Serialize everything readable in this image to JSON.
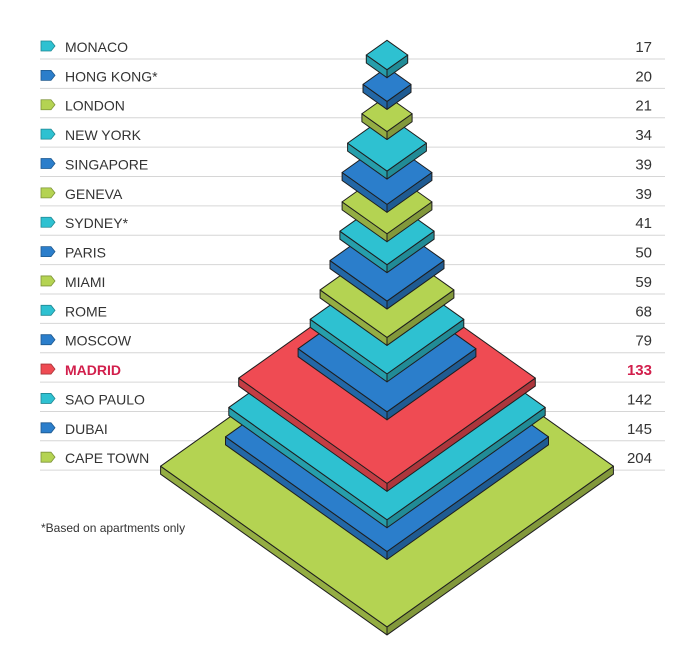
{
  "chart_data": {
    "type": "bar",
    "categories": [
      "MONACO",
      "HONG KONG*",
      "LONDON",
      "NEW YORK",
      "SINGAPORE",
      "GENEVA",
      "SYDNEY*",
      "PARIS",
      "MIAMI",
      "ROME",
      "MOSCOW",
      "MADRID",
      "SAO PAULO",
      "DUBAI",
      "CAPE TOWN"
    ],
    "values": [
      17,
      20,
      21,
      34,
      39,
      39,
      41,
      50,
      59,
      68,
      79,
      133,
      142,
      145,
      204
    ],
    "series_colors": [
      "cyan",
      "blue",
      "green",
      "cyan",
      "blue",
      "green",
      "cyan",
      "blue",
      "green",
      "cyan",
      "blue",
      "red",
      "cyan",
      "blue",
      "green"
    ],
    "highlight": "MADRID",
    "footnote": "*Based on apartments only",
    "colors": {
      "cyan": "#2ec1d1",
      "blue": "#2b7ecb",
      "green": "#b4d352",
      "red": "#ef4b53",
      "highlight_text": "#d21f4c"
    }
  }
}
